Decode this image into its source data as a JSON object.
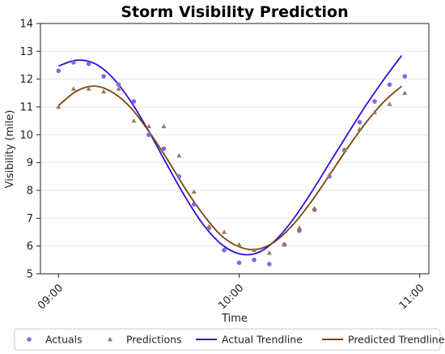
{
  "chart_data": {
    "type": "scatter",
    "title": "Storm Visibility Prediction",
    "xlabel": "Time",
    "ylabel": "Visibility (mile)",
    "x_ticks": [
      {
        "value": 9.0,
        "label": "09:00"
      },
      {
        "value": 10.0,
        "label": "10:00"
      },
      {
        "value": 11.0,
        "label": "11:00"
      }
    ],
    "y_ticks": [
      5,
      6,
      7,
      8,
      9,
      10,
      11,
      12,
      13,
      14
    ],
    "xlim": [
      8.9,
      11.05
    ],
    "ylim": [
      5,
      14
    ],
    "grid": "horizontal",
    "legend_position": "bottom",
    "series": [
      {
        "name": "Actuals",
        "kind": "scatter",
        "marker": "circle",
        "color": "#7b6be0",
        "x": [
          9.0,
          9.083,
          9.167,
          9.25,
          9.333,
          9.417,
          9.5,
          9.583,
          9.667,
          9.75,
          9.833,
          9.917,
          10.0,
          10.083,
          10.167,
          10.25,
          10.333,
          10.417,
          10.5,
          10.583,
          10.667,
          10.75,
          10.833,
          10.917
        ],
        "y": [
          12.3,
          12.6,
          12.55,
          12.1,
          11.8,
          11.2,
          10.0,
          9.5,
          8.5,
          7.5,
          6.65,
          5.85,
          5.4,
          5.5,
          5.35,
          6.05,
          6.55,
          7.3,
          8.5,
          9.45,
          10.45,
          11.2,
          11.8,
          12.1
        ]
      },
      {
        "name": "Predictions",
        "kind": "scatter",
        "marker": "triangle",
        "color": "#a07850",
        "x": [
          9.0,
          9.083,
          9.167,
          9.25,
          9.333,
          9.417,
          9.5,
          9.583,
          9.667,
          9.75,
          9.833,
          9.917,
          10.0,
          10.083,
          10.167,
          10.25,
          10.333,
          10.417,
          10.5,
          10.583,
          10.667,
          10.75,
          10.833,
          10.917
        ],
        "y": [
          11.0,
          11.65,
          11.65,
          11.55,
          11.65,
          10.5,
          10.3,
          10.3,
          9.25,
          7.95,
          6.7,
          6.5,
          6.05,
          5.85,
          5.75,
          6.05,
          6.65,
          7.35,
          8.55,
          9.45,
          10.2,
          10.8,
          11.1,
          11.5
        ]
      },
      {
        "name": "Actual Trendline",
        "kind": "line",
        "color": "#2b12d6",
        "x": [
          9.0,
          9.1,
          9.2,
          9.3,
          9.4,
          9.5,
          9.6,
          9.7,
          9.8,
          9.9,
          10.0,
          10.1,
          10.2,
          10.3,
          10.4,
          10.5,
          10.6,
          10.7,
          10.8,
          10.9
        ],
        "y": [
          12.47,
          12.68,
          12.56,
          12.05,
          11.2,
          10.12,
          8.93,
          7.78,
          6.78,
          6.07,
          5.72,
          5.75,
          6.2,
          6.97,
          7.93,
          8.98,
          10.02,
          11.04,
          11.98,
          12.85
        ]
      },
      {
        "name": "Predicted Trendline",
        "kind": "line",
        "color": "#7a4414",
        "x": [
          9.0,
          9.1,
          9.2,
          9.3,
          9.4,
          9.5,
          9.6,
          9.7,
          9.8,
          9.9,
          10.0,
          10.1,
          10.2,
          10.3,
          10.4,
          10.5,
          10.6,
          10.7,
          10.8,
          10.9
        ],
        "y": [
          11.05,
          11.57,
          11.75,
          11.52,
          10.97,
          10.12,
          9.14,
          8.08,
          7.14,
          6.38,
          5.97,
          5.88,
          6.17,
          6.78,
          7.6,
          8.55,
          9.52,
          10.42,
          11.18,
          11.75
        ]
      }
    ]
  }
}
